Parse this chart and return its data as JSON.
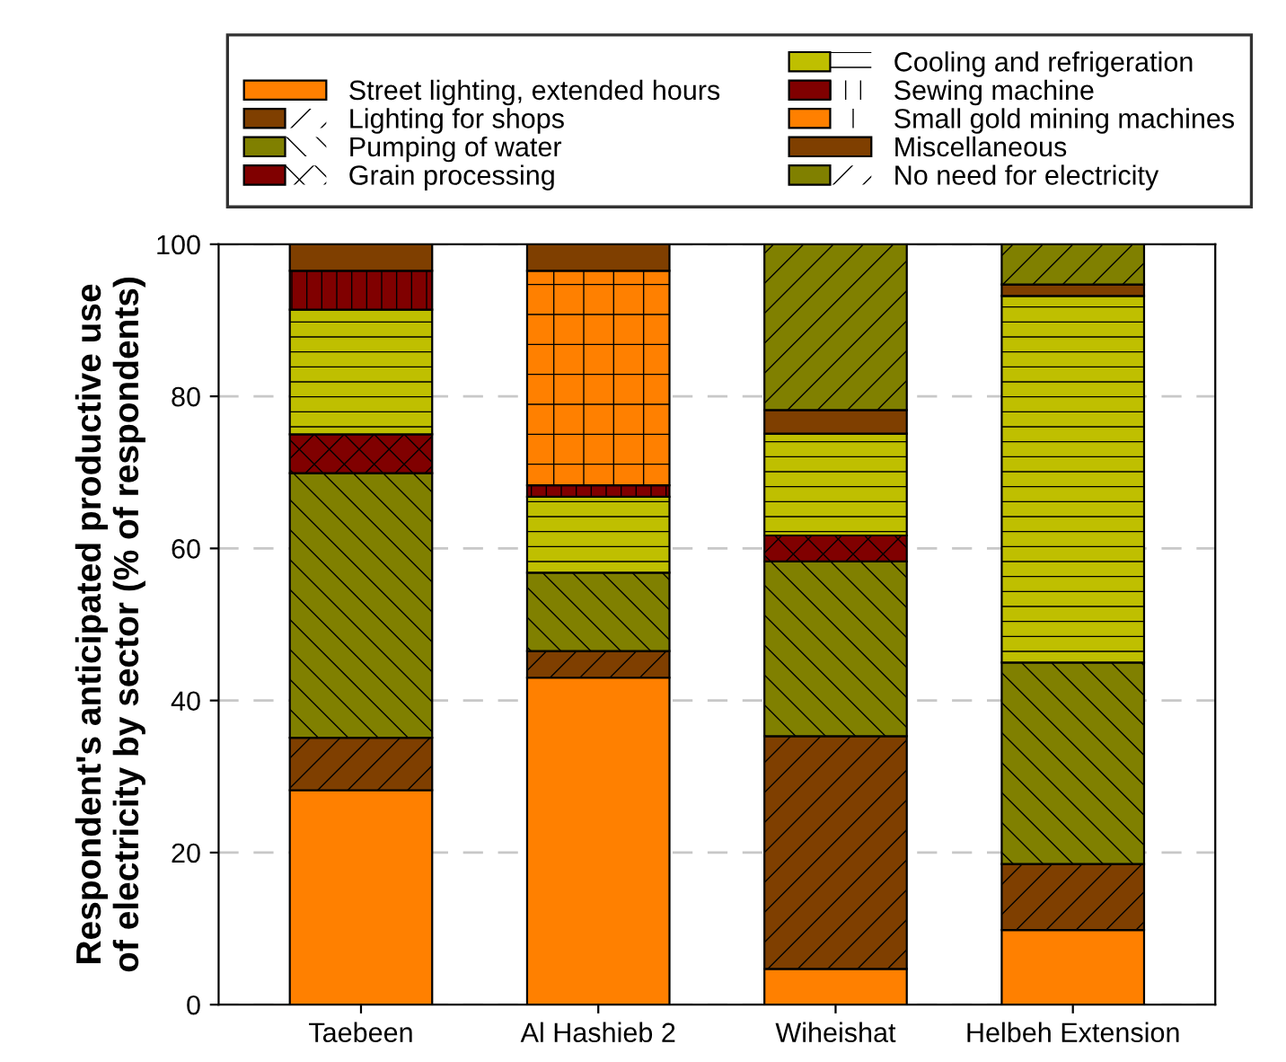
{
  "chart_data": {
    "type": "bar",
    "stacked": true,
    "ylabel": "Respondent's anticipated productive use\nof electricity by sector (% of respondents)",
    "categories": [
      "Taebeen",
      "Al Hashieb 2",
      "Wiheishat",
      "Helbeh Extension"
    ],
    "ylim": [
      0,
      100
    ],
    "yticks": [
      0,
      20,
      40,
      60,
      80,
      100
    ],
    "grid": "y",
    "legend": "top",
    "series": [
      {
        "name": "Street lighting, extended hours",
        "color": "#ff8000",
        "values": [
          28.2,
          43.0,
          4.7,
          9.8
        ]
      },
      {
        "name": "Lighting for shops",
        "color": "#7f3f00",
        "values": [
          6.9,
          3.5,
          30.6,
          8.7
        ]
      },
      {
        "name": "Pumping of water",
        "color": "#808000",
        "values": [
          34.8,
          10.3,
          23.0,
          26.5
        ]
      },
      {
        "name": "Grain processing",
        "color": "#800000",
        "values": [
          5.1,
          0,
          3.4,
          0
        ]
      },
      {
        "name": "Cooling and refrigeration",
        "color": "#bfbf00",
        "values": [
          16.4,
          10.0,
          13.4,
          48.2
        ]
      },
      {
        "name": "Sewing machine",
        "color": "#800000",
        "values": [
          5.1,
          1.5,
          0,
          0
        ]
      },
      {
        "name": "Small gold mining machines",
        "color": "#ff8000",
        "values": [
          0,
          28.2,
          0,
          0
        ]
      },
      {
        "name": "Miscellaneous",
        "color": "#7f3f00",
        "values": [
          3.5,
          3.5,
          3.1,
          1.5
        ]
      },
      {
        "name": "No need for electricity",
        "color": "#808000",
        "values": [
          0,
          0,
          21.8,
          5.3
        ]
      }
    ]
  }
}
